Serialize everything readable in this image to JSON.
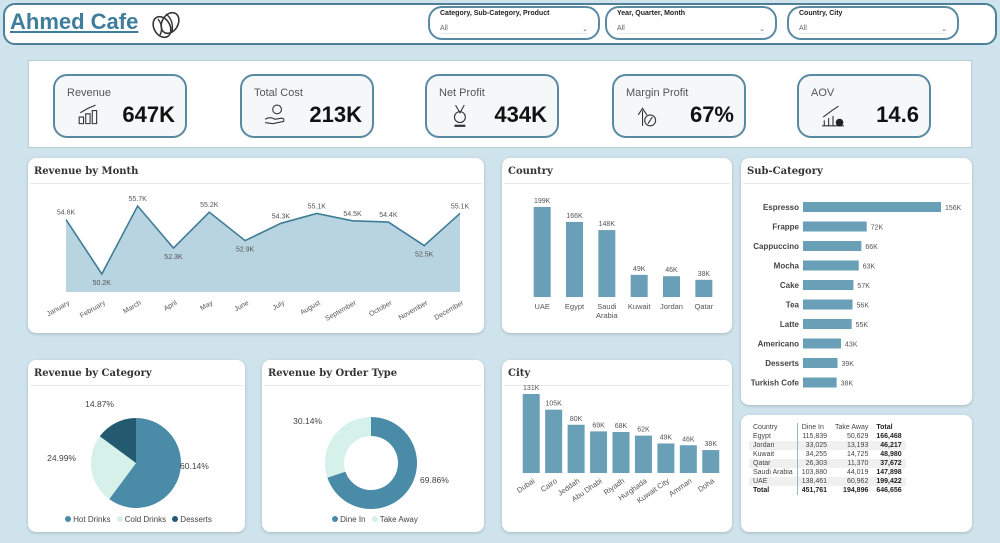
{
  "header": {
    "title": "Ahmed Cafe",
    "logo_icon": "coffee-bean-icon"
  },
  "slicers": [
    {
      "label": "Category, Sub-Category, Product",
      "value": "All"
    },
    {
      "label": "Year, Quarter, Month",
      "value": "All"
    },
    {
      "label": "Country, City",
      "value": "All"
    }
  ],
  "kpis": [
    {
      "name": "Revenue",
      "value": "647K",
      "icon": "coins-growth-icon"
    },
    {
      "name": "Total Cost",
      "value": "213K",
      "icon": "hand-coins-icon"
    },
    {
      "name": "Net Profit",
      "value": "434K",
      "icon": "profit-medal-icon"
    },
    {
      "name": "Margin Profit",
      "value": "67%",
      "icon": "percent-arrow-icon"
    },
    {
      "name": "AOV",
      "value": "14.6",
      "icon": "bar-chart-growth-icon"
    }
  ],
  "colors": {
    "accent": "#4a8ba8",
    "bar": "#6a9fb8",
    "area": "#b4d2de",
    "light": "#d6f0ea",
    "dark": "#245a70"
  },
  "chart_data": [
    {
      "type": "area",
      "title": "Revenue by Month",
      "categories": [
        "January",
        "February",
        "March",
        "April",
        "May",
        "June",
        "July",
        "August",
        "September",
        "October",
        "November",
        "December"
      ],
      "values": [
        54.6,
        50.2,
        55.7,
        52.3,
        55.2,
        52.9,
        54.3,
        55.1,
        54.5,
        54.4,
        52.5,
        55.1
      ],
      "labels": [
        "54.6K",
        "50.2K",
        "55.7K",
        "52.3K",
        "55.2K",
        "52.9K",
        "54.3K",
        "55.1K",
        "54.5K",
        "54.4K",
        "52.5K",
        "55.1K"
      ],
      "unit": "K"
    },
    {
      "type": "bar",
      "title": "Country",
      "categories": [
        "UAE",
        "Egypt",
        "Saudi Arabia",
        "Kuwait",
        "Jordan",
        "Qatar"
      ],
      "values": [
        199,
        166,
        148,
        49,
        46,
        38
      ],
      "labels": [
        "199K",
        "166K",
        "148K",
        "49K",
        "46K",
        "38K"
      ]
    },
    {
      "type": "bar",
      "orientation": "horizontal",
      "title": "Sub-Category",
      "categories": [
        "Espresso",
        "Frappe",
        "Cappuccino",
        "Mocha",
        "Cake",
        "Tea",
        "Latte",
        "Americano",
        "Desserts",
        "Turkish Cofe"
      ],
      "values": [
        156,
        72,
        66,
        63,
        57,
        56,
        55,
        43,
        39,
        38
      ],
      "labels": [
        "156K",
        "72K",
        "66K",
        "63K",
        "57K",
        "56K",
        "55K",
        "43K",
        "39K",
        "38K"
      ]
    },
    {
      "type": "pie",
      "title": "Revenue by Category",
      "series": [
        {
          "name": "Hot  Drinks",
          "value": 60.14,
          "label": "60.14%"
        },
        {
          "name": "Cold  Drinks",
          "value": 24.99,
          "label": "24.99%"
        },
        {
          "name": "Desserts",
          "value": 14.87,
          "label": "14.87%"
        }
      ]
    },
    {
      "type": "donut",
      "title": "Revenue by Order Type",
      "series": [
        {
          "name": "Dine In",
          "value": 69.86,
          "label": "69.86%"
        },
        {
          "name": "Take Away",
          "value": 30.14,
          "label": "30.14%"
        }
      ]
    },
    {
      "type": "bar",
      "title": "City",
      "categories": [
        "Dubai",
        "Cairo",
        "Jeddah",
        "Abu Dhabi",
        "Riyadh",
        "Hurghada",
        "Kuwait City",
        "Amman",
        "Doha"
      ],
      "values": [
        131,
        105,
        80,
        69,
        68,
        62,
        49,
        46,
        38
      ],
      "labels": [
        "131K",
        "105K",
        "80K",
        "69K",
        "68K",
        "62K",
        "49K",
        "46K",
        "38K"
      ]
    },
    {
      "type": "table",
      "columns": [
        "Country",
        "Dine In",
        "Take Away",
        "Total"
      ],
      "rows": [
        [
          "Egypt",
          "115,839",
          "50,629",
          "166,468"
        ],
        [
          "Jordan",
          "33,025",
          "13,193",
          "46,217"
        ],
        [
          "Kuwait",
          "34,255",
          "14,725",
          "48,980"
        ],
        [
          "Qatar",
          "26,303",
          "11,370",
          "37,672"
        ],
        [
          "Saudi Arabia",
          "103,880",
          "44,019",
          "147,898"
        ],
        [
          "UAE",
          "138,461",
          "60,962",
          "199,422"
        ]
      ],
      "total": [
        "Total",
        "451,761",
        "194,896",
        "646,656"
      ]
    }
  ]
}
